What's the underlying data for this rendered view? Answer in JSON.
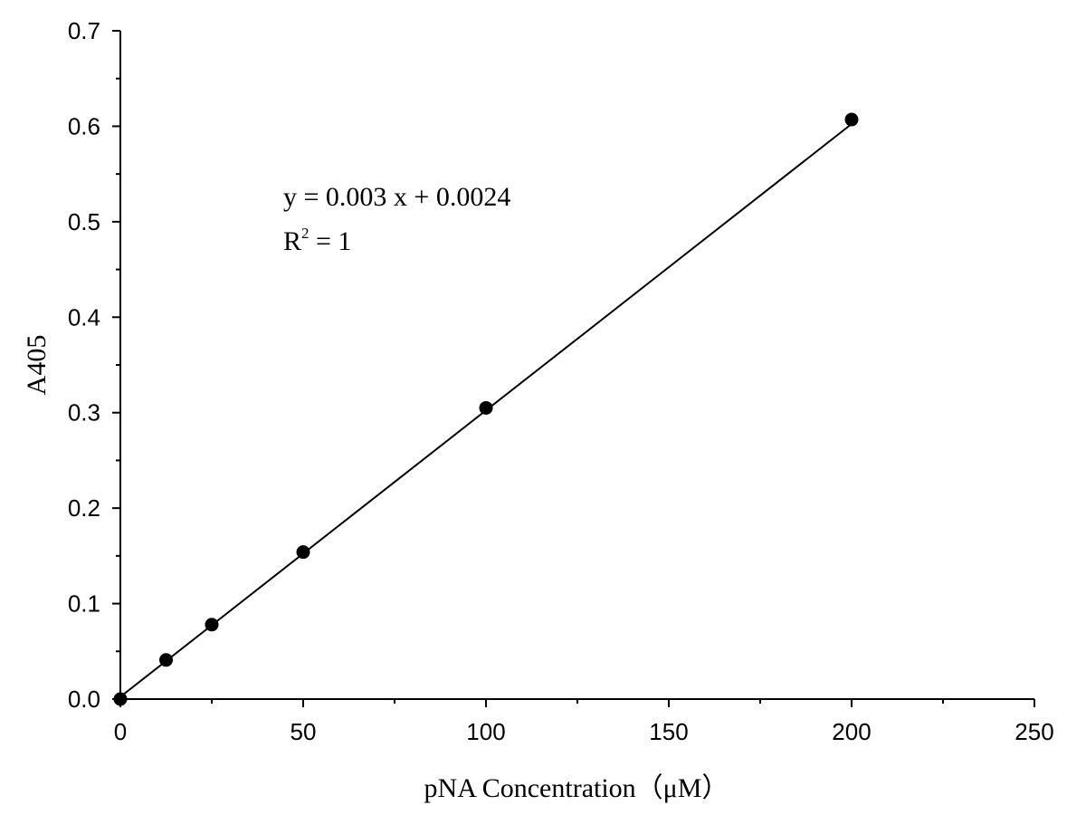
{
  "chart_data": {
    "type": "scatter",
    "title": "",
    "xlabel": "pNA Concentration（μM）",
    "ylabel": "A405",
    "xlim": [
      0,
      250
    ],
    "ylim": [
      0.0,
      0.7
    ],
    "x_ticks": [
      "0",
      "50",
      "100",
      "150",
      "200",
      "250"
    ],
    "y_ticks": [
      "0.0",
      "0.1",
      "0.2",
      "0.3",
      "0.4",
      "0.5",
      "0.6",
      "0.7"
    ],
    "grid": false,
    "legend": "none",
    "series": [
      {
        "x": [
          0,
          12.5,
          25,
          50,
          100,
          200
        ],
        "y": [
          0.0,
          0.041,
          0.078,
          0.154,
          0.305,
          0.607
        ]
      }
    ],
    "fit_line": {
      "x": [
        0,
        200
      ],
      "y": [
        0.0024,
        0.6024
      ]
    },
    "annotations": {
      "equation": "y = 0.003 x + 0.0024",
      "r2_prefix": "R",
      "r2_superscript": "2",
      "r2_suffix": " = 1"
    },
    "colors": {
      "marker": "#000000",
      "line": "#000000",
      "axis": "#000000"
    }
  }
}
